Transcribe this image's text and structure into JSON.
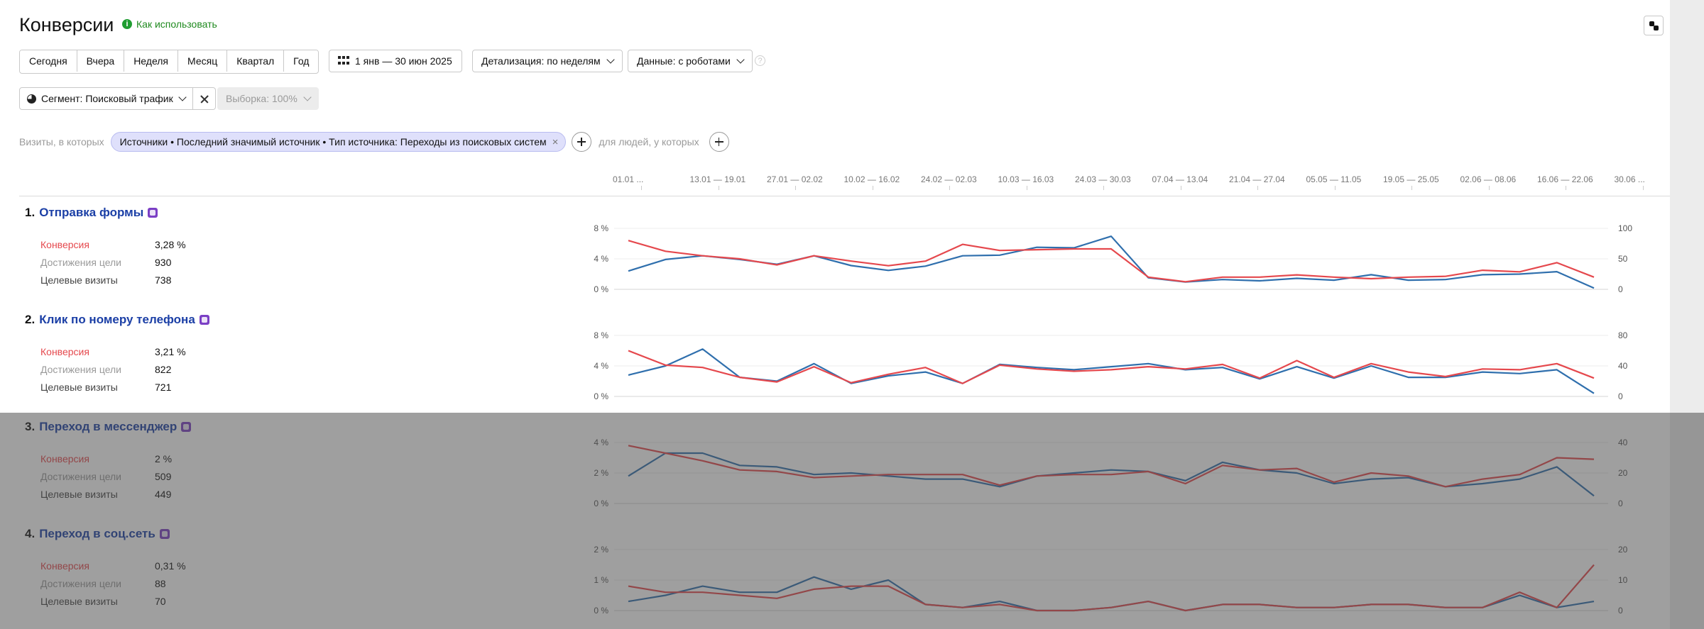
{
  "header": {
    "title": "Конверсии",
    "howto": "Как использовать",
    "info_glyph": "i"
  },
  "toolbar": {
    "periods": [
      "Сегодня",
      "Вчера",
      "Неделя",
      "Месяц",
      "Квартал",
      "Год"
    ],
    "date_range": "1 янв — 30 июн 2025",
    "detail": "Детализация: по неделям",
    "data": "Данные: с роботами",
    "help_glyph": "?"
  },
  "segment": {
    "label": "Сегмент: Поисковый трафик",
    "sample": "Выборка: 100%"
  },
  "filter": {
    "prefix": "Визиты, в которых",
    "chip": "Источники • Последний значимый источник • Тип источника: Переходы из поисковых систем",
    "chip_close": "×",
    "people": "для людей, у которых"
  },
  "axis": {
    "weeks": [
      "01.01 ...",
      "13.01 — 19.01",
      "27.01 — 02.02",
      "10.02 — 16.02",
      "24.02 — 02.03",
      "10.03 — 16.03",
      "24.03 — 30.03",
      "07.04 — 13.04",
      "21.04 — 27.04",
      "05.05 — 11.05",
      "19.05 — 25.05",
      "02.06 — 08.06",
      "16.06 — 22.06",
      "30.06 ..."
    ]
  },
  "labels": {
    "conversion": "Конверсия",
    "achievements": "Достижения цели",
    "visits": "Целевые визиты"
  },
  "colors": {
    "conversion_line": "#e5484d",
    "visits_line": "#2f6fad",
    "title_link": "#1b3fa6",
    "goal_icon": "#7b3fc5",
    "chip_bg": "#dfe0fb",
    "green_link": "#1f8a1f"
  },
  "goals": [
    {
      "num": "1.",
      "name": "Отправка формы",
      "icon": "form-icon",
      "conversion": "3,28 %",
      "achievements": "930",
      "visits": "738",
      "chart": {
        "left_ticks": [
          "8 %",
          "4 %",
          "0 %"
        ],
        "right_ticks": [
          "100",
          "50",
          "0"
        ],
        "left_max": 8,
        "right_max": 100,
        "conversion": [
          6.4,
          5.0,
          4.4,
          4.0,
          3.2,
          4.4,
          3.7,
          3.1,
          3.7,
          5.9,
          5.1,
          5.2,
          5.3,
          5.3,
          1.6,
          1.0,
          1.6,
          1.6,
          1.9,
          1.6,
          1.4,
          1.6,
          1.7,
          2.5,
          2.3,
          3.5,
          1.6
        ],
        "visits": [
          30,
          49,
          55,
          49,
          41,
          55,
          39,
          31,
          38,
          55,
          56,
          69,
          68,
          87,
          19,
          12,
          16,
          14,
          18,
          15,
          24,
          15,
          16,
          24,
          25,
          29,
          2
        ]
      }
    },
    {
      "num": "2.",
      "name": "Клик по номеру телефона",
      "icon": "phone-icon",
      "conversion": "3,21 %",
      "achievements": "822",
      "visits": "721",
      "chart": {
        "left_ticks": [
          "8 %",
          "4 %",
          "0 %"
        ],
        "right_ticks": [
          "80",
          "40",
          "0"
        ],
        "left_max": 8,
        "right_max": 80,
        "conversion": [
          6.0,
          4.1,
          3.8,
          2.5,
          1.9,
          3.9,
          1.8,
          2.9,
          3.8,
          1.7,
          4.1,
          3.6,
          3.3,
          3.5,
          3.9,
          3.6,
          4.2,
          2.4,
          4.7,
          2.5,
          4.3,
          3.2,
          2.6,
          3.6,
          3.5,
          4.3,
          2.4
        ],
        "visits": [
          28,
          40,
          62,
          25,
          20,
          43,
          17,
          27,
          32,
          17,
          42,
          38,
          35,
          39,
          43,
          35,
          38,
          23,
          39,
          24,
          40,
          25,
          25,
          32,
          30,
          35,
          4
        ]
      }
    },
    {
      "num": "3.",
      "name": "Переход в мессенджер",
      "icon": "messenger-icon",
      "conversion": "2 %",
      "achievements": "509",
      "visits": "449",
      "chart": {
        "left_ticks": [
          "4 %",
          "2 %",
          "0 %"
        ],
        "right_ticks": [
          "40",
          "20",
          "0"
        ],
        "left_max": 4,
        "right_max": 40,
        "conversion": [
          3.8,
          3.3,
          2.8,
          2.2,
          2.1,
          1.7,
          1.8,
          1.9,
          1.9,
          1.9,
          1.2,
          1.8,
          1.9,
          1.9,
          2.1,
          1.3,
          2.5,
          2.2,
          2.3,
          1.4,
          2.0,
          1.8,
          1.1,
          1.6,
          1.9,
          3.0,
          2.9
        ],
        "visits": [
          18,
          33,
          33,
          25,
          24,
          19,
          20,
          18,
          16,
          16,
          11,
          18,
          20,
          22,
          21,
          15,
          27,
          22,
          20,
          13,
          16,
          17,
          11,
          13,
          16,
          24,
          5
        ]
      }
    },
    {
      "num": "4.",
      "name": "Переход в соц.сеть",
      "icon": "social-icon",
      "conversion": "0,31 %",
      "achievements": "88",
      "visits": "70",
      "chart": {
        "left_ticks": [
          "2 %",
          "1 %",
          "0 %"
        ],
        "right_ticks": [
          "20",
          "10",
          "0"
        ],
        "left_max": 2,
        "right_max": 20,
        "conversion": [
          0.8,
          0.6,
          0.6,
          0.5,
          0.4,
          0.7,
          0.8,
          0.8,
          0.2,
          0.1,
          0.2,
          0.0,
          0.0,
          0.1,
          0.3,
          0.0,
          0.2,
          0.2,
          0.1,
          0.1,
          0.2,
          0.2,
          0.1,
          0.1,
          0.6,
          0.1,
          1.5
        ],
        "visits": [
          3,
          5,
          8,
          6,
          6,
          11,
          7,
          10,
          2,
          1,
          3,
          0,
          0,
          1,
          3,
          0,
          2,
          2,
          1,
          1,
          2,
          2,
          1,
          1,
          5,
          1,
          3
        ]
      }
    }
  ]
}
